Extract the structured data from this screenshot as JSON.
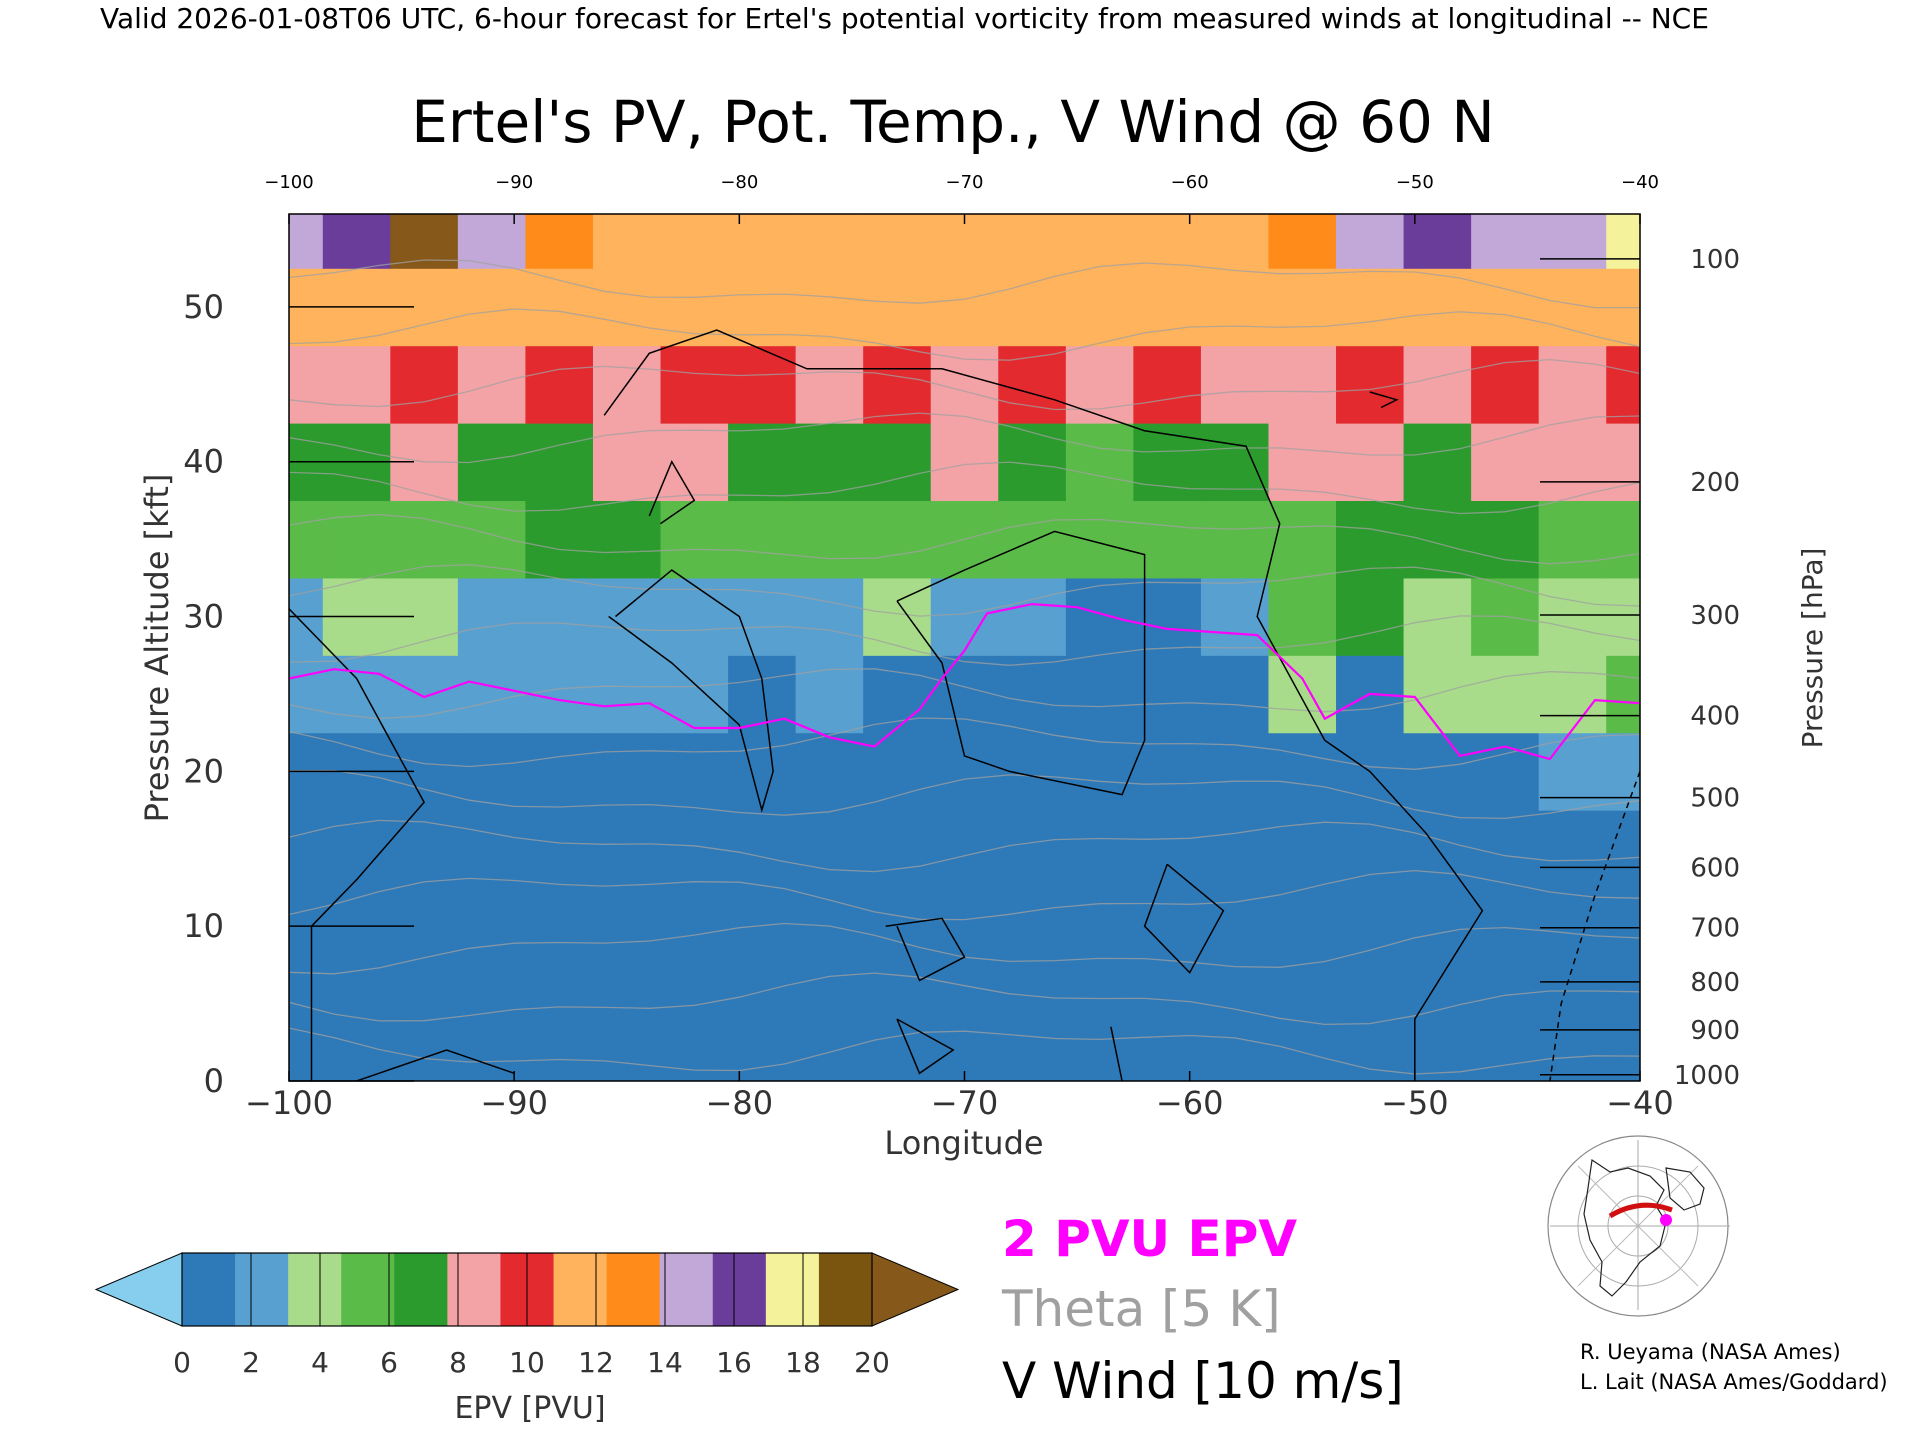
{
  "header": "Valid 2026-01-08T06 UTC, 6-hour forecast for Ertel's potential vorticity from measured winds at longitudinal -- NCE",
  "colors": {
    "pv_contour": "#ff00ff",
    "theta_contour": "#a0a0a0",
    "wind_contour": "#000000"
  },
  "chart_data": {
    "type": "heatmap",
    "title": "Ertel's PV, Pot. Temp., V Wind @ 60 N",
    "xlabel": "Longitude",
    "ylabel": "Pressure Altitude [kft]",
    "ylabel_right": "Pressure [hPa]",
    "xlim": [
      -100,
      -40
    ],
    "ylim": [
      0,
      56
    ],
    "x_ticks": [
      -100,
      -90,
      -80,
      -70,
      -60,
      -50,
      -40
    ],
    "x_tick_labels": [
      "−100",
      "−90",
      "−80",
      "−70",
      "−60",
      "−50",
      "−40"
    ],
    "y_ticks": [
      0,
      10,
      20,
      30,
      40,
      50
    ],
    "y_tick_labels": [
      "0",
      "10",
      "20",
      "30",
      "40",
      "50"
    ],
    "pressure_ticks": [
      {
        "hpa": 1000,
        "kft": 0.4
      },
      {
        "hpa": 900,
        "kft": 3.3
      },
      {
        "hpa": 800,
        "kft": 6.4
      },
      {
        "hpa": 700,
        "kft": 9.9
      },
      {
        "hpa": 600,
        "kft": 13.8
      },
      {
        "hpa": 500,
        "kft": 18.3
      },
      {
        "hpa": 400,
        "kft": 23.6
      },
      {
        "hpa": 300,
        "kft": 30.1
      },
      {
        "hpa": 200,
        "kft": 38.7
      },
      {
        "hpa": 100,
        "kft": 53.1
      }
    ],
    "longitudes": [
      -100,
      -97,
      -94,
      -91,
      -88,
      -85,
      -82,
      -79,
      -76,
      -73,
      -70,
      -67,
      -64,
      -61,
      -58,
      -55,
      -52,
      -49,
      -46,
      -43,
      -40
    ],
    "altitudes_kft": [
      0,
      5,
      10,
      15,
      20,
      25,
      30,
      35,
      40,
      45,
      50,
      55
    ],
    "epv_pvu": [
      [
        0.3,
        0.3,
        0.3,
        0.3,
        0.3,
        0.3,
        0.3,
        0.3,
        0.3,
        0.3,
        0.3,
        0.3,
        0.3,
        0.3,
        0.3,
        0.3,
        0.3,
        0.3,
        0.3,
        0.3,
        0.3
      ],
      [
        1.2,
        1.0,
        1.1,
        0.9,
        1.0,
        1.4,
        0.9,
        1.0,
        1.0,
        1.1,
        0.8,
        0.9,
        1.0,
        0.9,
        1.0,
        1.1,
        0.8,
        0.9,
        1.0,
        0.9,
        1.0
      ],
      [
        1.1,
        1.0,
        1.2,
        1.0,
        1.1,
        1.0,
        1.0,
        0.9,
        1.0,
        1.1,
        0.9,
        1.0,
        1.1,
        0.8,
        1.0,
        1.1,
        0.9,
        1.0,
        0.9,
        1.0,
        1.0
      ],
      [
        1.2,
        1.1,
        1.2,
        1.1,
        1.1,
        1.1,
        1.0,
        1.1,
        1.0,
        1.1,
        0.9,
        1.0,
        1.1,
        1.0,
        1.1,
        1.2,
        0.9,
        1.0,
        1.1,
        1.0,
        1.1
      ],
      [
        1.4,
        1.3,
        1.4,
        1.3,
        1.2,
        1.3,
        1.2,
        1.3,
        1.2,
        1.4,
        1.1,
        1.2,
        1.3,
        1.2,
        1.3,
        1.4,
        1.1,
        1.2,
        1.3,
        2.2,
        2.4
      ],
      [
        1.8,
        1.7,
        1.9,
        1.8,
        1.7,
        1.8,
        1.7,
        1.6,
        1.7,
        1.6,
        1.5,
        1.5,
        1.4,
        1.5,
        1.4,
        3.4,
        1.6,
        3.6,
        3.9,
        4.6,
        5.0
      ],
      [
        3.2,
        3.4,
        3.4,
        3.3,
        3.2,
        3.1,
        3.0,
        3.3,
        3.1,
        3.4,
        3.2,
        1.7,
        1.5,
        1.5,
        1.8,
        5.6,
        6.8,
        4.6,
        5.2,
        4.8,
        4.8
      ],
      [
        5.2,
        5.0,
        5.4,
        6.4,
        6.8,
        7.4,
        6.2,
        5.4,
        5.8,
        6.6,
        5.2,
        5.4,
        5.8,
        5.4,
        5.6,
        6.6,
        7.6,
        7.2,
        6.8,
        6.2,
        5.8
      ],
      [
        8.2,
        7.6,
        8.4,
        8.0,
        7.4,
        8.6,
        8.4,
        7.8,
        8.2,
        7.6,
        9.2,
        8.0,
        6.6,
        6.8,
        7.6,
        8.6,
        8.4,
        8.2,
        8.6,
        8.8,
        8.4
      ],
      [
        9.8,
        9.6,
        10.2,
        9.6,
        10.0,
        9.4,
        11.4,
        11.6,
        9.8,
        10.2,
        9.6,
        10.4,
        9.8,
        10.2,
        9.6,
        9.8,
        10.0,
        9.6,
        10.4,
        9.8,
        10.2
      ],
      [
        12.6,
        12.4,
        12.8,
        12.2,
        12.4,
        12.2,
        12.0,
        12.4,
        12.2,
        12.4,
        12.6,
        12.2,
        12.4,
        11.8,
        12.0,
        12.6,
        12.2,
        12.8,
        12.4,
        12.6,
        12.2
      ],
      [
        16.6,
        17.4,
        20.4,
        16.2,
        14.2,
        12.6,
        12.8,
        13.2,
        12.8,
        13.0,
        12.6,
        12.8,
        12.4,
        13.0,
        12.8,
        14.6,
        16.4,
        18.2,
        15.2,
        16.4,
        18.4
      ]
    ],
    "pv_2pvu_kft": [
      26.0,
      26.6,
      26.3,
      24.8,
      25.8,
      25.2,
      24.6,
      24.2,
      24.4,
      22.8,
      22.8,
      23.4,
      22.2,
      21.6,
      24.0,
      26.0,
      27.8,
      30.2,
      30.8,
      30.6,
      29.8,
      29.2,
      29.0,
      28.8,
      26.0,
      23.4,
      25.0,
      24.8,
      21.0,
      21.6,
      20.8,
      24.6,
      24.4
    ],
    "pv_2pvu_lon": [
      -100,
      -98,
      -96,
      -94,
      -92,
      -90,
      -88,
      -86,
      -84,
      -82,
      -80,
      -78,
      -76,
      -74,
      -72,
      -71,
      -70,
      -69,
      -67,
      -65,
      -63,
      -61,
      -59,
      -57,
      -55,
      -54,
      -52,
      -50,
      -48,
      -46,
      -44,
      -42,
      -40
    ],
    "theta_levels_K": [
      270,
      280,
      290,
      300,
      310,
      320,
      330,
      340,
      350,
      360,
      370,
      380,
      390,
      400,
      410,
      420
    ],
    "wind_contours": "0 m/s v-wind isolines (solid), negative dashed",
    "colorbar": {
      "label": "EPV [PVU]",
      "ticks": [
        0,
        2,
        4,
        6,
        8,
        10,
        12,
        14,
        16,
        18,
        20
      ],
      "colors": [
        "#2e79b8",
        "#58a0d0",
        "#a8dc8a",
        "#5bbb49",
        "#2a9b2c",
        "#f3a3a6",
        "#e22a2f",
        "#ffb35c",
        "#ff8c1a",
        "#c2a8d8",
        "#6a3d9a",
        "#f4f29a",
        "#7a5510"
      ],
      "under": "#87ceee",
      "over": "#86581a"
    },
    "grid": false,
    "legend": "bottom-right"
  },
  "legend": {
    "pv": "2 PVU EPV",
    "theta": "Theta [5 K]",
    "wind": "V Wind [10 m/s]"
  },
  "credits": [
    "R. Ueyama (NASA Ames)",
    "L. Lait (NASA Ames/Goddard)"
  ]
}
